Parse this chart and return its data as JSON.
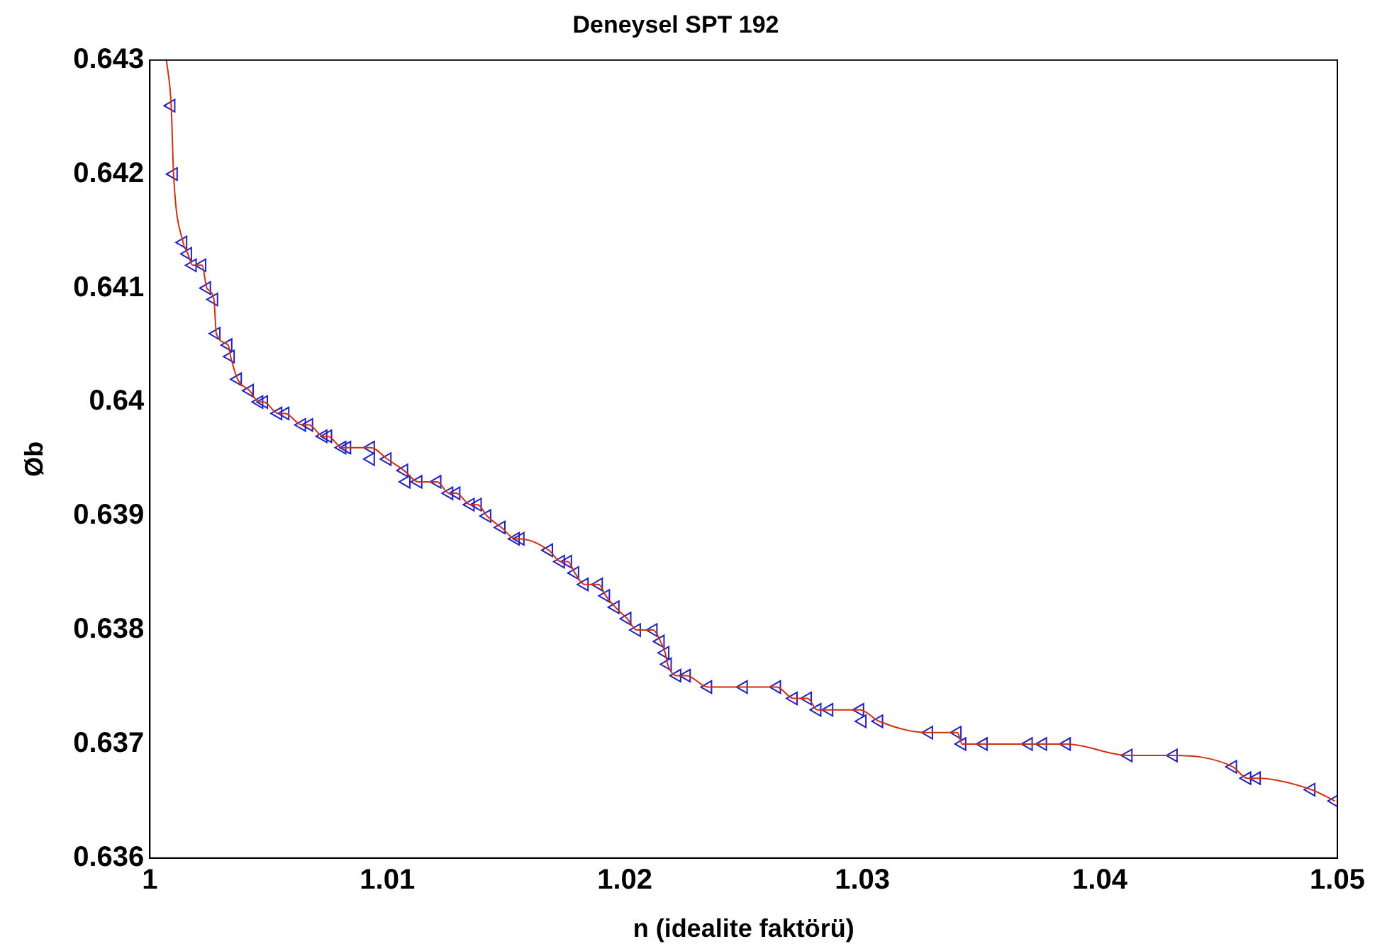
{
  "chart_data": {
    "type": "line",
    "title": "Deneysel SPT 192",
    "xlabel": "n (idealite faktörü)",
    "ylabel": "Øb",
    "xlim": [
      1,
      1.05
    ],
    "xticks": [
      1,
      1.01,
      1.02,
      1.03,
      1.04,
      1.05
    ],
    "ylim": [
      0.636,
      0.643
    ],
    "yticks": [
      0.636,
      0.637,
      0.638,
      0.639,
      0.64,
      0.641,
      0.642,
      0.643
    ],
    "grid": false,
    "legend": false,
    "series": [
      {
        "marker": "none",
        "color": "#d03010",
        "x": [
          1.0007,
          1.0009,
          1.001,
          1.0014,
          1.0016,
          1.0018,
          1.0022,
          1.0024,
          1.0027,
          1.0028,
          1.0033,
          1.0034,
          1.0037,
          1.0042,
          1.0046,
          1.0048,
          1.0054,
          1.0057,
          1.0064,
          1.0067,
          1.0073,
          1.0075,
          1.0081,
          1.0083,
          1.0093,
          1.01,
          1.0107,
          1.0113,
          1.0121,
          1.0126,
          1.0129,
          1.0135,
          1.0138,
          1.0142,
          1.0148,
          1.0154,
          1.0156,
          1.0168,
          1.0173,
          1.0176,
          1.0179,
          1.0183,
          1.0189,
          1.0192,
          1.0196,
          1.0201,
          1.0205,
          1.0212,
          1.0215,
          1.0217,
          1.0218,
          1.0222,
          1.0226,
          1.0235,
          1.025,
          1.0264,
          1.0271,
          1.0277,
          1.0281,
          1.0286,
          1.0299,
          1.0307,
          1.0328,
          1.034,
          1.0342,
          1.0351,
          1.037,
          1.0376,
          1.0386,
          1.0412,
          1.0431,
          1.0456,
          1.0462,
          1.0466,
          1.0489,
          1.0499
        ],
        "values": [
          0.643,
          0.6426,
          0.642,
          0.6414,
          0.6413,
          0.6412,
          0.6412,
          0.641,
          0.6409,
          0.6406,
          0.6405,
          0.6404,
          0.6402,
          0.6401,
          0.64,
          0.64,
          0.6399,
          0.6399,
          0.6398,
          0.6398,
          0.6397,
          0.6397,
          0.6396,
          0.6396,
          0.6396,
          0.6395,
          0.6394,
          0.6393,
          0.6393,
          0.6392,
          0.6392,
          0.6391,
          0.6391,
          0.639,
          0.6389,
          0.6388,
          0.6388,
          0.6387,
          0.6386,
          0.6386,
          0.6385,
          0.6384,
          0.6384,
          0.6383,
          0.6382,
          0.6381,
          0.638,
          0.638,
          0.6379,
          0.6378,
          0.6377,
          0.6376,
          0.6376,
          0.6375,
          0.6375,
          0.6375,
          0.6374,
          0.6374,
          0.6373,
          0.6373,
          0.6373,
          0.6372,
          0.6371,
          0.6371,
          0.637,
          0.637,
          0.637,
          0.637,
          0.637,
          0.6369,
          0.6369,
          0.6368,
          0.6367,
          0.6367,
          0.6366,
          0.6365
        ]
      },
      {
        "type": "scatter",
        "marker": "triangle",
        "color": "#2020c0",
        "x": [
          1.0009,
          1.001,
          1.0014,
          1.0016,
          1.0018,
          1.0022,
          1.0024,
          1.0027,
          1.0028,
          1.0033,
          1.0034,
          1.0037,
          1.0042,
          1.0046,
          1.0048,
          1.0054,
          1.0057,
          1.0064,
          1.0067,
          1.0073,
          1.0075,
          1.0081,
          1.0083,
          1.0093,
          1.0093,
          1.01,
          1.0107,
          1.0108,
          1.0113,
          1.0121,
          1.0126,
          1.0129,
          1.0135,
          1.0138,
          1.0142,
          1.0148,
          1.0154,
          1.0156,
          1.0168,
          1.0173,
          1.0176,
          1.0179,
          1.0183,
          1.0189,
          1.0192,
          1.0196,
          1.0201,
          1.0205,
          1.0212,
          1.0215,
          1.0217,
          1.0218,
          1.0222,
          1.0226,
          1.0235,
          1.025,
          1.0264,
          1.0271,
          1.0277,
          1.0281,
          1.0286,
          1.0299,
          1.03,
          1.0307,
          1.0328,
          1.034,
          1.0342,
          1.0351,
          1.037,
          1.0376,
          1.0386,
          1.0412,
          1.0431,
          1.0456,
          1.0462,
          1.0466,
          1.0489,
          1.0499
        ],
        "values": [
          0.6426,
          0.642,
          0.6414,
          0.6413,
          0.6412,
          0.6412,
          0.641,
          0.6409,
          0.6406,
          0.6405,
          0.6404,
          0.6402,
          0.6401,
          0.64,
          0.64,
          0.6399,
          0.6399,
          0.6398,
          0.6398,
          0.6397,
          0.6397,
          0.6396,
          0.6396,
          0.6396,
          0.6395,
          0.6395,
          0.6394,
          0.6393,
          0.6393,
          0.6393,
          0.6392,
          0.6392,
          0.6391,
          0.6391,
          0.639,
          0.6389,
          0.6388,
          0.6388,
          0.6387,
          0.6386,
          0.6386,
          0.6385,
          0.6384,
          0.6384,
          0.6383,
          0.6382,
          0.6381,
          0.638,
          0.638,
          0.6379,
          0.6378,
          0.6377,
          0.6376,
          0.6376,
          0.6375,
          0.6375,
          0.6375,
          0.6374,
          0.6374,
          0.6373,
          0.6373,
          0.6373,
          0.6372,
          0.6372,
          0.6371,
          0.6371,
          0.637,
          0.637,
          0.637,
          0.637,
          0.637,
          0.6369,
          0.6369,
          0.6368,
          0.6367,
          0.6367,
          0.6366,
          0.6365
        ]
      }
    ]
  }
}
